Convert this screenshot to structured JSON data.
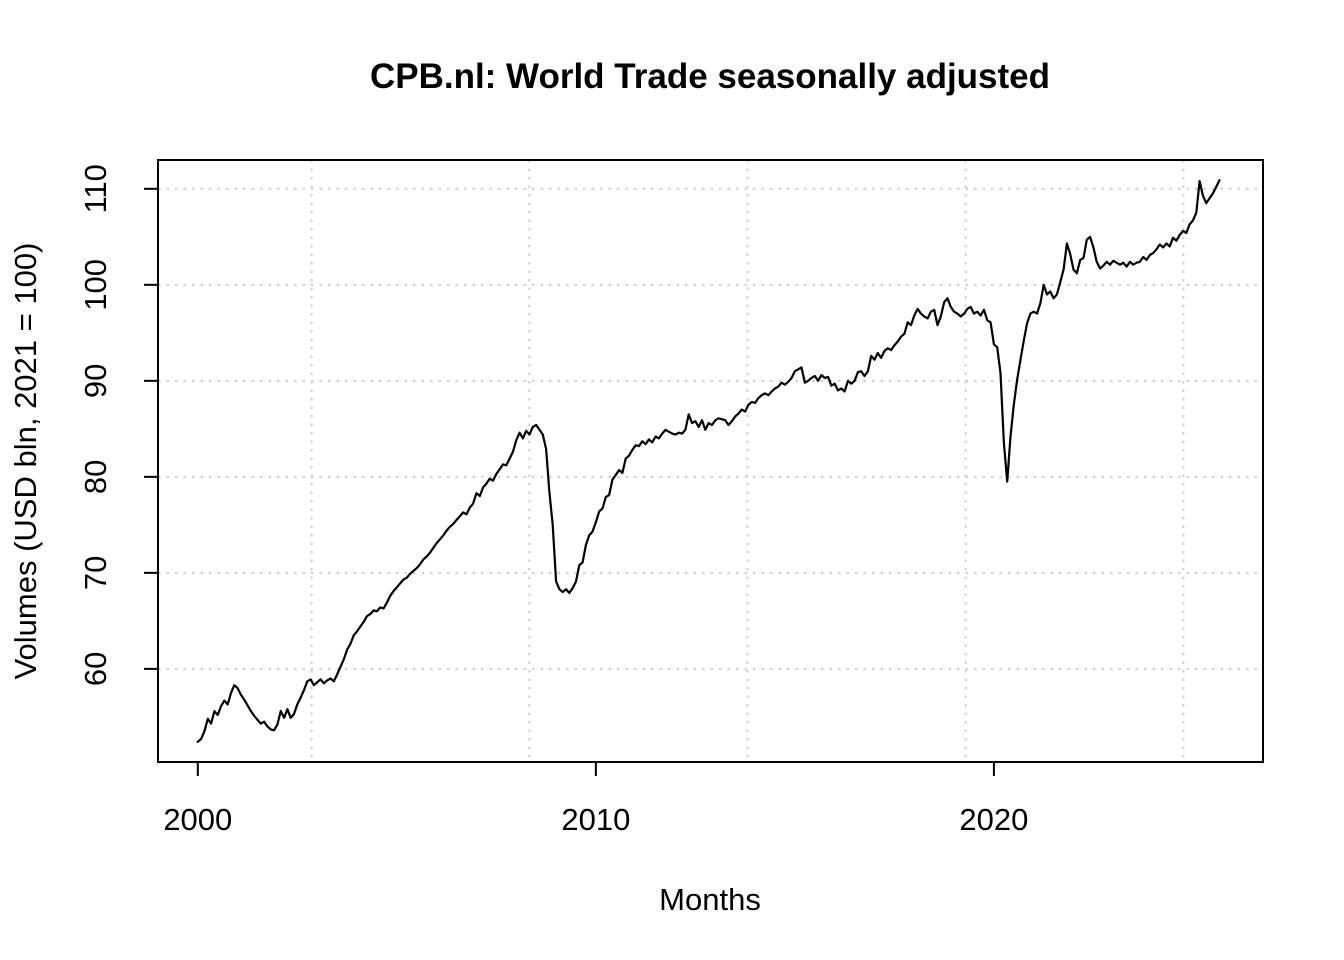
{
  "chart_data": {
    "type": "line",
    "title": "CPB.nl: World Trade seasonally adjusted",
    "xlabel": "Months",
    "ylabel": "Volumes (USD bln, 2021 = 100)",
    "x_ticks": [
      2000,
      2010,
      2020
    ],
    "y_ticks": [
      60,
      70,
      80,
      90,
      100,
      110
    ],
    "xlim": [
      1999.0,
      2026.76
    ],
    "ylim": [
      50.3,
      113.0
    ],
    "grid": {
      "x_positions": [
        2002.86,
        2008.33,
        2013.81,
        2019.29,
        2024.76
      ],
      "y_positions": [
        60,
        70,
        80,
        90,
        100,
        110
      ],
      "style": "dotted",
      "color": "#cfcfcf"
    },
    "line_color": "#000000",
    "axis_color": "#000000",
    "legend": "none",
    "series": [
      {
        "name": "World trade volume (seasonally adjusted)",
        "start_year": 2000,
        "start_month": 1,
        "frequency": "monthly",
        "values": [
          52.4,
          52.7,
          53.5,
          54.8,
          54.3,
          55.6,
          55.2,
          56.1,
          56.7,
          56.3,
          57.5,
          58.3,
          58.0,
          57.3,
          56.8,
          56.2,
          55.6,
          55.1,
          54.7,
          54.3,
          54.5,
          54.0,
          53.7,
          53.6,
          54.2,
          55.6,
          54.9,
          55.8,
          54.9,
          55.3,
          56.3,
          57.0,
          57.8,
          58.7,
          58.9,
          58.3,
          58.6,
          58.9,
          58.5,
          58.8,
          59.0,
          58.7,
          59.4,
          60.2,
          61.0,
          62.0,
          62.6,
          63.5,
          63.9,
          64.4,
          64.9,
          65.5,
          65.7,
          66.1,
          66.0,
          66.4,
          66.3,
          66.9,
          67.6,
          68.1,
          68.5,
          68.9,
          69.3,
          69.5,
          69.9,
          70.2,
          70.5,
          70.9,
          71.4,
          71.7,
          72.1,
          72.6,
          73.1,
          73.5,
          73.9,
          74.4,
          74.8,
          75.1,
          75.5,
          75.9,
          76.3,
          76.1,
          76.8,
          77.2,
          78.3,
          78.0,
          78.9,
          79.3,
          79.8,
          79.6,
          80.3,
          80.8,
          81.3,
          81.2,
          81.9,
          82.6,
          83.8,
          84.6,
          84.0,
          84.8,
          84.4,
          85.2,
          85.4,
          84.9,
          84.4,
          82.9,
          78.4,
          75.0,
          69.1,
          68.3,
          68.0,
          68.3,
          67.9,
          68.4,
          69.1,
          70.8,
          71.1,
          72.9,
          73.9,
          74.3,
          75.3,
          76.4,
          76.7,
          77.9,
          78.1,
          79.7,
          80.2,
          80.7,
          80.4,
          81.9,
          82.2,
          82.8,
          83.3,
          83.2,
          83.7,
          83.4,
          83.9,
          83.6,
          84.2,
          84.0,
          84.5,
          84.9,
          84.7,
          84.5,
          84.4,
          84.6,
          84.5,
          84.9,
          86.5,
          85.6,
          85.8,
          85.2,
          85.9,
          84.9,
          85.6,
          85.4,
          85.9,
          86.1,
          86.0,
          85.9,
          85.4,
          85.8,
          86.3,
          86.6,
          87.0,
          86.8,
          87.5,
          87.8,
          87.7,
          88.2,
          88.5,
          88.7,
          88.5,
          88.9,
          89.2,
          89.4,
          89.8,
          89.6,
          89.9,
          90.3,
          91.0,
          91.2,
          91.4,
          89.8,
          90.0,
          90.3,
          90.5,
          90.0,
          90.6,
          90.3,
          90.4,
          89.5,
          89.7,
          89.0,
          89.2,
          88.9,
          90.0,
          89.7,
          90.0,
          90.9,
          91.0,
          90.5,
          91.0,
          92.6,
          92.2,
          92.9,
          92.4,
          93.1,
          93.4,
          93.2,
          93.7,
          94.1,
          94.6,
          94.9,
          96.1,
          95.8,
          96.8,
          97.5,
          97.0,
          96.7,
          96.5,
          97.2,
          97.4,
          95.8,
          96.7,
          98.2,
          98.6,
          97.7,
          97.2,
          97.0,
          96.7,
          97.0,
          97.5,
          97.7,
          97.0,
          97.2,
          96.8,
          97.4,
          96.3,
          96.1,
          93.8,
          93.5,
          90.8,
          83.5,
          79.5,
          84.2,
          87.5,
          90.1,
          92.2,
          94.2,
          96.0,
          97.0,
          97.2,
          97.0,
          98.1,
          100.0,
          99.0,
          99.3,
          98.6,
          99.0,
          100.3,
          101.6,
          104.3,
          103.2,
          101.6,
          101.2,
          102.6,
          102.8,
          104.7,
          105.0,
          103.9,
          102.4,
          101.7,
          102.0,
          102.4,
          102.1,
          102.5,
          102.3,
          102.1,
          102.3,
          101.9,
          102.4,
          102.1,
          102.3,
          102.4,
          102.9,
          102.6,
          103.1,
          103.3,
          103.7,
          104.2,
          103.9,
          104.3,
          104.0,
          104.9,
          104.6,
          105.2,
          105.6,
          105.4,
          106.3,
          106.7,
          107.5,
          110.8,
          109.3,
          108.5,
          109.0,
          109.5,
          110.2,
          110.9
        ]
      }
    ]
  }
}
